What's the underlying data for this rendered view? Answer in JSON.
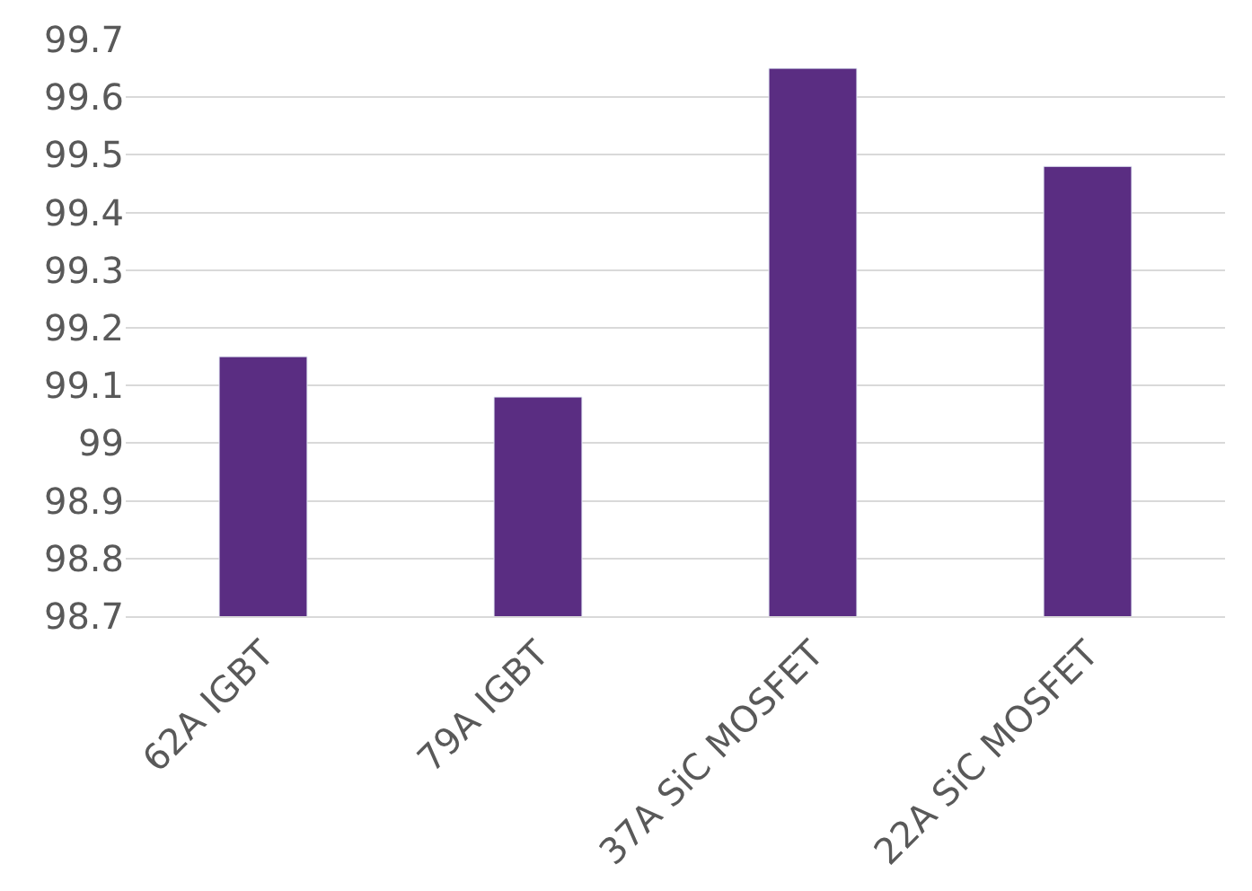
{
  "chart_data": {
    "type": "bar",
    "categories": [
      "62A IGBT",
      "79A IGBT",
      "37A SiC MOSFET",
      "22A SiC MOSFET"
    ],
    "series": [
      {
        "color": "#5a2d82",
        "values": [
          99.15,
          99.08,
          99.65,
          99.48
        ]
      }
    ],
    "ylim": [
      98.7,
      99.7
    ],
    "yticks": [
      98.7,
      98.8,
      98.9,
      {
        "value": 99.0,
        "label": "99"
      },
      99.1,
      99.2,
      99.3,
      99.4,
      99.5,
      99.6,
      99.7
    ],
    "grid": "y"
  }
}
